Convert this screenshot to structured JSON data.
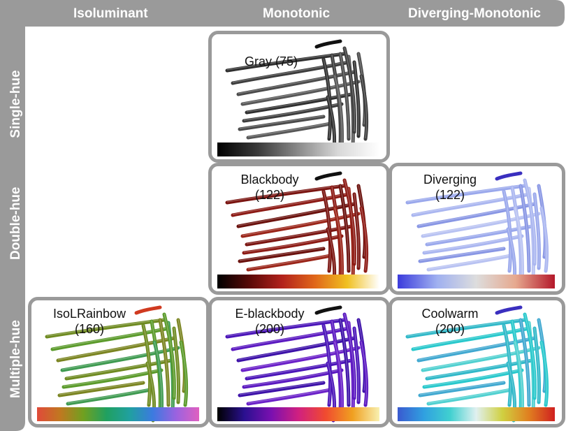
{
  "columns": [
    "Isoluminant",
    "Monotonic",
    "Diverging-Monotonic"
  ],
  "rows": [
    "Single-hue",
    "Double-hue",
    "Multiple-hue"
  ],
  "panels": [
    {
      "id": "gray",
      "name": "Gray",
      "count": "(75)",
      "col": 1,
      "row": 0,
      "stops": [
        "#000000",
        "#3a3a3a",
        "#8a8a8a",
        "#d9d9d9",
        "#ffffff"
      ],
      "strand_colors": [
        "#2f2f2f",
        "#3c3c3c",
        "#4a4a4a",
        "#575757"
      ],
      "accent": "#111111"
    },
    {
      "id": "blackbody",
      "name": "Blackbody",
      "count": "(122)",
      "col": 1,
      "row": 1,
      "stops": [
        "#000000",
        "#5a0a08",
        "#b2221c",
        "#e0661a",
        "#f0c020",
        "#ffffff"
      ],
      "strand_colors": [
        "#7a1410",
        "#8c1a14",
        "#6a100c",
        "#9a2418"
      ],
      "accent": "#111111"
    },
    {
      "id": "diverging",
      "name": "Diverging",
      "count": "(122)",
      "col": 2,
      "row": 1,
      "stops": [
        "#3b3bdc",
        "#9fb0f0",
        "#dddddd",
        "#e6a98f",
        "#b4182a"
      ],
      "strand_colors": [
        "#9aa8ec",
        "#aab6f0",
        "#8896e4",
        "#b8c2f2"
      ],
      "accent": "#3a2fbf"
    },
    {
      "id": "isolrainbow",
      "name": "IsoLRainbow",
      "count": "(160)",
      "col": 0,
      "row": 2,
      "stops": [
        "#e04a3a",
        "#c07820",
        "#70a020",
        "#20a060",
        "#20a0a0",
        "#3c7ae0",
        "#9a62e0",
        "#e060c0"
      ],
      "strand_colors": [
        "#6e8a20",
        "#5a9a2a",
        "#7a8420",
        "#3e9a50"
      ],
      "accent": "#d03a20"
    },
    {
      "id": "eblackbody",
      "name": "E-blackbody",
      "count": "(200)",
      "col": 1,
      "row": 2,
      "stops": [
        "#000000",
        "#2a1090",
        "#7a10b0",
        "#d02080",
        "#f04a30",
        "#f0a020",
        "#f8f0b0"
      ],
      "strand_colors": [
        "#4a14b8",
        "#5a18c0",
        "#3c10a8",
        "#6a20c8"
      ],
      "accent": "#111111"
    },
    {
      "id": "coolwarm",
      "name": "Coolwarm",
      "count": "(200)",
      "col": 2,
      "row": 2,
      "stops": [
        "#3a5ad0",
        "#30a0e0",
        "#40d0d0",
        "#e0f0f0",
        "#d0d040",
        "#e08020",
        "#d02020"
      ],
      "strand_colors": [
        "#30b8c8",
        "#28c8cc",
        "#40a8d0",
        "#50d0d0"
      ],
      "accent": "#3a2fbf"
    }
  ]
}
